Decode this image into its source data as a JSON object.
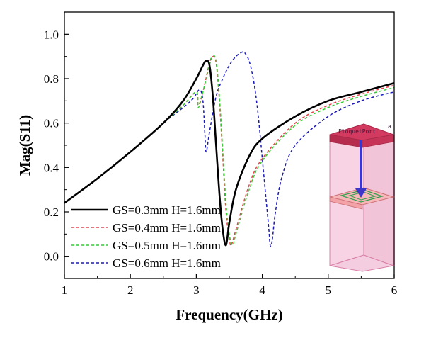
{
  "chart_data": {
    "type": "line",
    "title": "",
    "xlabel": "Frequency(GHz)",
    "ylabel": "Mag(S11)",
    "xlim": [
      1,
      6
    ],
    "ylim": [
      -0.1,
      1.1
    ],
    "xticks": [
      1,
      2,
      3,
      4,
      5,
      6
    ],
    "yticks": [
      0.0,
      0.2,
      0.4,
      0.6,
      0.8,
      1.0
    ],
    "xtick_labels": [
      "1",
      "2",
      "3",
      "4",
      "5",
      "6"
    ],
    "ytick_labels": [
      "0.0",
      "0.2",
      "0.4",
      "0.6",
      "0.8",
      "1.0"
    ],
    "grid": false,
    "legend_position": "bottom-left",
    "series": [
      {
        "name": "GS=0.3mm H=1.6mm",
        "color": "#000000",
        "style": "solid",
        "x": [
          1.0,
          1.5,
          2.0,
          2.5,
          2.8,
          3.0,
          3.1,
          3.15,
          3.2,
          3.25,
          3.3,
          3.35,
          3.4,
          3.45,
          3.5,
          3.6,
          3.8,
          4.0,
          4.5,
          5.0,
          5.5,
          6.0
        ],
        "y": [
          0.24,
          0.35,
          0.47,
          0.6,
          0.7,
          0.8,
          0.86,
          0.88,
          0.86,
          0.72,
          0.5,
          0.28,
          0.12,
          0.05,
          0.15,
          0.3,
          0.45,
          0.53,
          0.63,
          0.7,
          0.74,
          0.78
        ]
      },
      {
        "name": "GS=0.4mm H=1.6mm",
        "color": "#e8424a",
        "style": "dashed",
        "x": [
          1.0,
          1.5,
          2.0,
          2.5,
          2.8,
          3.0,
          3.03,
          3.1,
          3.2,
          3.25,
          3.3,
          3.35,
          3.4,
          3.45,
          3.5,
          3.53,
          3.6,
          3.8,
          4.0,
          4.5,
          5.0,
          5.5,
          6.0
        ],
        "y": [
          0.24,
          0.35,
          0.47,
          0.6,
          0.68,
          0.74,
          0.68,
          0.74,
          0.87,
          0.9,
          0.87,
          0.7,
          0.45,
          0.2,
          0.08,
          0.05,
          0.12,
          0.32,
          0.44,
          0.6,
          0.68,
          0.73,
          0.77
        ]
      },
      {
        "name": "GS=0.5mm H=1.6mm",
        "color": "#33cc33",
        "style": "dashed",
        "x": [
          1.0,
          1.5,
          2.0,
          2.5,
          2.8,
          3.0,
          3.03,
          3.1,
          3.2,
          3.25,
          3.3,
          3.35,
          3.4,
          3.45,
          3.5,
          3.55,
          3.6,
          3.8,
          4.0,
          4.5,
          5.0,
          5.5,
          6.0
        ],
        "y": [
          0.24,
          0.35,
          0.47,
          0.6,
          0.68,
          0.74,
          0.67,
          0.74,
          0.86,
          0.9,
          0.88,
          0.72,
          0.48,
          0.24,
          0.1,
          0.05,
          0.1,
          0.3,
          0.43,
          0.59,
          0.67,
          0.72,
          0.76
        ]
      },
      {
        "name": "GS=0.6mm H=1.6mm",
        "color": "#1a1ab3",
        "style": "dashed",
        "x": [
          1.0,
          1.5,
          2.0,
          2.5,
          2.8,
          2.95,
          3.05,
          3.1,
          3.13,
          3.15,
          3.2,
          3.3,
          3.4,
          3.5,
          3.6,
          3.7,
          3.75,
          3.8,
          3.85,
          3.9,
          3.95,
          4.0,
          4.05,
          4.1,
          4.12,
          4.15,
          4.2,
          4.3,
          4.5,
          5.0,
          5.5,
          6.0
        ],
        "y": [
          0.24,
          0.35,
          0.47,
          0.6,
          0.67,
          0.71,
          0.75,
          0.7,
          0.55,
          0.47,
          0.56,
          0.72,
          0.8,
          0.86,
          0.9,
          0.92,
          0.91,
          0.88,
          0.82,
          0.73,
          0.6,
          0.44,
          0.28,
          0.12,
          0.05,
          0.07,
          0.2,
          0.36,
          0.5,
          0.63,
          0.7,
          0.74
        ]
      }
    ],
    "inset": {
      "label": "FloquetPort",
      "superscript": "a"
    }
  }
}
